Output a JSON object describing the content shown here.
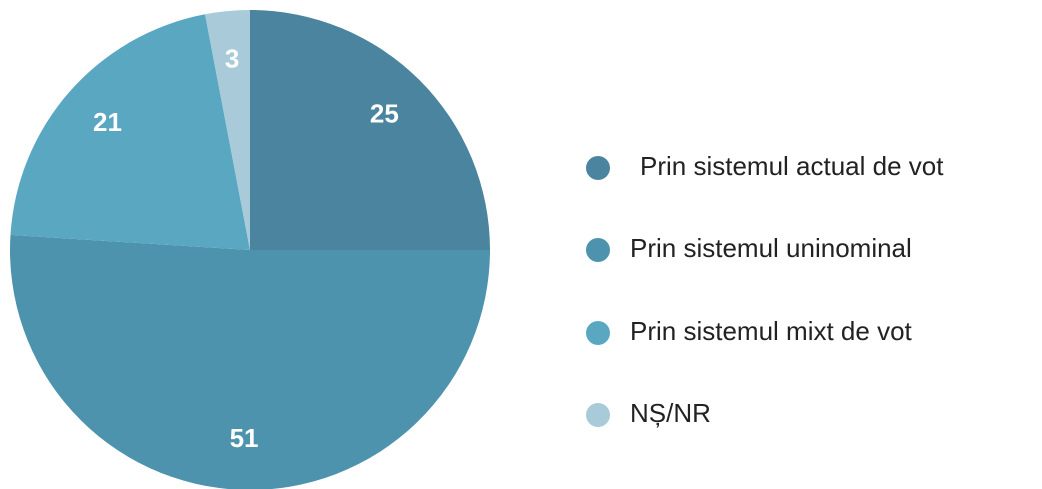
{
  "chart_data": {
    "type": "pie",
    "categories": [
      "Prin sistemul actual de vot",
      "Prin sistemul uninominal",
      "Prin sistemul mixt de vot",
      "NȘ/NR"
    ],
    "values": [
      25,
      51,
      21,
      3
    ],
    "colors": [
      "#4a849e",
      "#4e93ae",
      "#5aa7c2",
      "#a8cad9"
    ],
    "legend": "right"
  }
}
